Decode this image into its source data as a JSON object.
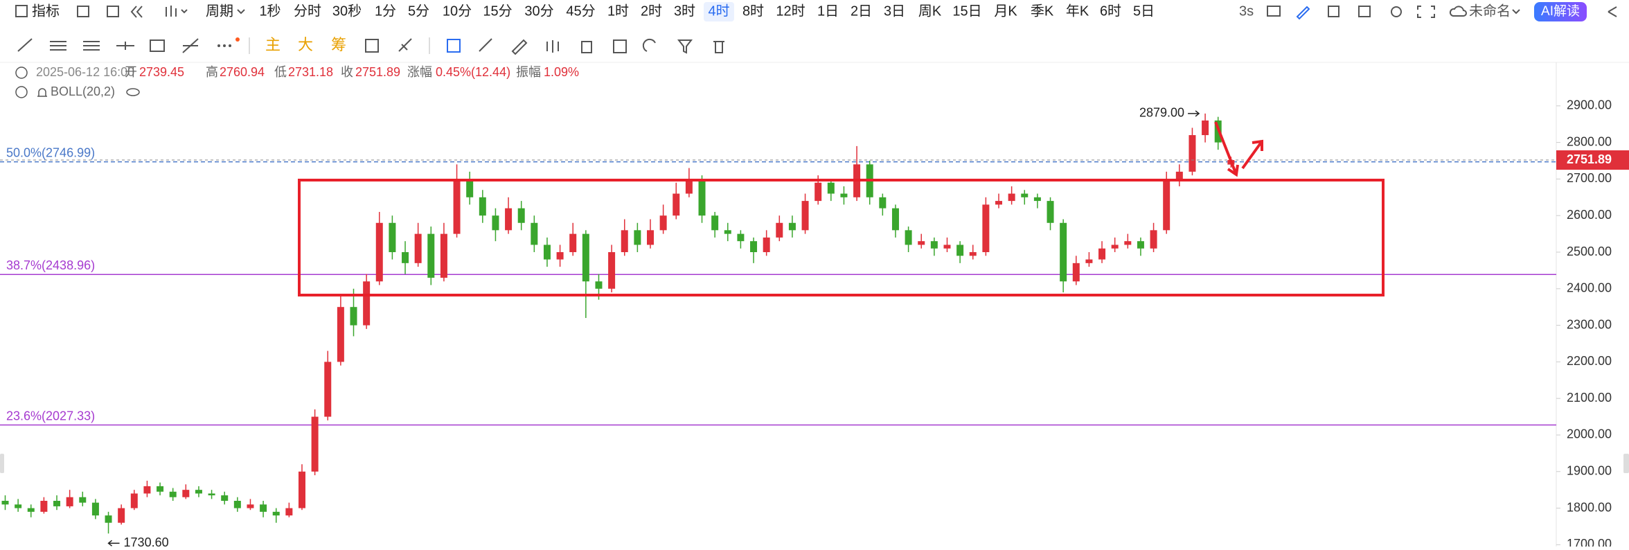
{
  "toolbar": {
    "indicator": "指标",
    "period": "周期",
    "timeframes": [
      "1秒",
      "分时",
      "30秒",
      "1分",
      "5分",
      "10分",
      "15分",
      "30分",
      "45分",
      "1时",
      "2时",
      "3时",
      "4时",
      "8时",
      "12时",
      "1日",
      "2日",
      "3日",
      "周K",
      "15日",
      "月K",
      "季K",
      "年K",
      "6时",
      "5日"
    ],
    "active": "4时",
    "refresh": "3s",
    "layout_name": "未命名",
    "ai_button": "AI解读",
    "tools": [
      "主",
      "大",
      "筹"
    ]
  },
  "info": {
    "datetime": "2025-06-12 16:00",
    "open_label": "开",
    "high_label": "高",
    "low_label": "低",
    "close_label": "收",
    "change_label": "涨幅",
    "change": "0.45%(12.44)",
    "amplitude_label": "振幅",
    "amplitude": "1.09%",
    "indicator": "BOLL(20,2)"
  },
  "chart_data": {
    "type": "candlestick",
    "up_color": "#e0303a",
    "down_color": "#3aa62d",
    "ylim": [
      1695,
      3019
    ],
    "yticks": [
      {
        "value": 1700,
        "label": "1700.00"
      },
      {
        "value": 1800,
        "label": "1800.00"
      },
      {
        "value": 1900,
        "label": "1900.00"
      },
      {
        "value": 2000,
        "label": "2000.00"
      },
      {
        "value": 2100,
        "label": "2100.00"
      },
      {
        "value": 2200,
        "label": "2200.00"
      },
      {
        "value": 2300,
        "label": "2300.00"
      },
      {
        "value": 2400,
        "label": "2400.00"
      },
      {
        "value": 2500,
        "label": "2500.00"
      },
      {
        "value": 2600,
        "label": "2600.00"
      },
      {
        "value": 2700,
        "label": "2700.00"
      },
      {
        "value": 2800,
        "label": "2800.00"
      },
      {
        "value": 2900,
        "label": "2900.00"
      }
    ],
    "levels": [
      {
        "label": "50.0%(2746.99)",
        "value": 2746.99,
        "color": "#4a78c8"
      },
      {
        "label": "38.7%(2438.96)",
        "value": 2438.96,
        "color": "#a63bd0"
      },
      {
        "label": "23.6%(2027.33)",
        "value": 2027.33,
        "color": "#a63bd0"
      }
    ],
    "extremes": [
      {
        "kind": "high",
        "label": "2879.00",
        "value": 2879
      },
      {
        "kind": "low",
        "label": "1730.60",
        "value": 1730.6
      }
    ],
    "candles": [
      [
        1820,
        1835,
        1795,
        1810
      ],
      [
        1810,
        1825,
        1790,
        1800
      ],
      [
        1800,
        1810,
        1775,
        1790
      ],
      [
        1790,
        1830,
        1785,
        1820
      ],
      [
        1820,
        1835,
        1795,
        1805
      ],
      [
        1805,
        1850,
        1800,
        1830
      ],
      [
        1830,
        1845,
        1805,
        1815
      ],
      [
        1815,
        1825,
        1770,
        1780
      ],
      [
        1780,
        1790,
        1730.6,
        1760
      ],
      [
        1760,
        1810,
        1755,
        1800
      ],
      [
        1800,
        1850,
        1795,
        1840
      ],
      [
        1840,
        1875,
        1830,
        1860
      ],
      [
        1860,
        1870,
        1835,
        1845
      ],
      [
        1845,
        1855,
        1820,
        1830
      ],
      [
        1830,
        1865,
        1825,
        1850
      ],
      [
        1850,
        1860,
        1830,
        1840
      ],
      [
        1840,
        1850,
        1825,
        1835
      ],
      [
        1835,
        1845,
        1810,
        1820
      ],
      [
        1820,
        1830,
        1790,
        1800
      ],
      [
        1800,
        1825,
        1795,
        1810
      ],
      [
        1810,
        1820,
        1775,
        1790
      ],
      [
        1790,
        1800,
        1760,
        1780
      ],
      [
        1780,
        1815,
        1775,
        1800
      ],
      [
        1800,
        1920,
        1795,
        1900
      ],
      [
        1900,
        2070,
        1890,
        2050
      ],
      [
        2050,
        2230,
        2040,
        2200
      ],
      [
        2200,
        2380,
        2190,
        2350
      ],
      [
        2350,
        2400,
        2270,
        2300
      ],
      [
        2300,
        2440,
        2290,
        2420
      ],
      [
        2420,
        2610,
        2410,
        2580
      ],
      [
        2580,
        2600,
        2480,
        2500
      ],
      [
        2500,
        2530,
        2440,
        2470
      ],
      [
        2470,
        2580,
        2460,
        2550
      ],
      [
        2550,
        2570,
        2410,
        2430
      ],
      [
        2430,
        2580,
        2420,
        2550
      ],
      [
        2550,
        2740,
        2540,
        2700
      ],
      [
        2700,
        2720,
        2630,
        2650
      ],
      [
        2650,
        2670,
        2580,
        2600
      ],
      [
        2600,
        2620,
        2530,
        2560
      ],
      [
        2560,
        2650,
        2550,
        2620
      ],
      [
        2620,
        2640,
        2560,
        2580
      ],
      [
        2580,
        2600,
        2500,
        2520
      ],
      [
        2520,
        2540,
        2460,
        2480
      ],
      [
        2480,
        2520,
        2460,
        2500
      ],
      [
        2500,
        2580,
        2490,
        2550
      ],
      [
        2550,
        2560,
        2320,
        2420
      ],
      [
        2420,
        2440,
        2370,
        2400
      ],
      [
        2400,
        2520,
        2390,
        2500
      ],
      [
        2500,
        2590,
        2490,
        2560
      ],
      [
        2560,
        2580,
        2500,
        2520
      ],
      [
        2520,
        2590,
        2510,
        2560
      ],
      [
        2560,
        2630,
        2550,
        2600
      ],
      [
        2600,
        2690,
        2590,
        2660
      ],
      [
        2660,
        2730,
        2650,
        2700
      ],
      [
        2700,
        2710,
        2580,
        2600
      ],
      [
        2600,
        2610,
        2540,
        2560
      ],
      [
        2560,
        2580,
        2530,
        2550
      ],
      [
        2550,
        2560,
        2510,
        2530
      ],
      [
        2530,
        2540,
        2470,
        2500
      ],
      [
        2500,
        2560,
        2490,
        2540
      ],
      [
        2540,
        2600,
        2530,
        2580
      ],
      [
        2580,
        2600,
        2540,
        2560
      ],
      [
        2560,
        2660,
        2550,
        2640
      ],
      [
        2640,
        2710,
        2630,
        2690
      ],
      [
        2690,
        2700,
        2640,
        2660
      ],
      [
        2660,
        2680,
        2630,
        2650
      ],
      [
        2650,
        2790,
        2640,
        2740
      ],
      [
        2740,
        2750,
        2630,
        2650
      ],
      [
        2650,
        2660,
        2600,
        2620
      ],
      [
        2620,
        2630,
        2540,
        2560
      ],
      [
        2560,
        2570,
        2500,
        2520
      ],
      [
        2520,
        2550,
        2510,
        2530
      ],
      [
        2530,
        2540,
        2490,
        2510
      ],
      [
        2510,
        2540,
        2500,
        2520
      ],
      [
        2520,
        2530,
        2470,
        2490
      ],
      [
        2490,
        2520,
        2480,
        2500
      ],
      [
        2500,
        2650,
        2490,
        2630
      ],
      [
        2630,
        2660,
        2620,
        2640
      ],
      [
        2640,
        2680,
        2630,
        2660
      ],
      [
        2660,
        2670,
        2630,
        2650
      ],
      [
        2650,
        2660,
        2620,
        2640
      ],
      [
        2640,
        2650,
        2560,
        2580
      ],
      [
        2580,
        2590,
        2390,
        2420
      ],
      [
        2420,
        2490,
        2410,
        2470
      ],
      [
        2470,
        2500,
        2460,
        2480
      ],
      [
        2480,
        2530,
        2470,
        2510
      ],
      [
        2510,
        2540,
        2500,
        2520
      ],
      [
        2520,
        2550,
        2510,
        2530
      ],
      [
        2530,
        2540,
        2490,
        2510
      ],
      [
        2510,
        2580,
        2500,
        2560
      ],
      [
        2560,
        2720,
        2550,
        2700
      ],
      [
        2700,
        2740,
        2680,
        2720
      ],
      [
        2720,
        2840,
        2710,
        2820
      ],
      [
        2820,
        2879,
        2800,
        2860
      ],
      [
        2860,
        2870,
        2780,
        2800
      ],
      [
        2739.45,
        2760.94,
        2731.18,
        2751.89
      ]
    ]
  }
}
